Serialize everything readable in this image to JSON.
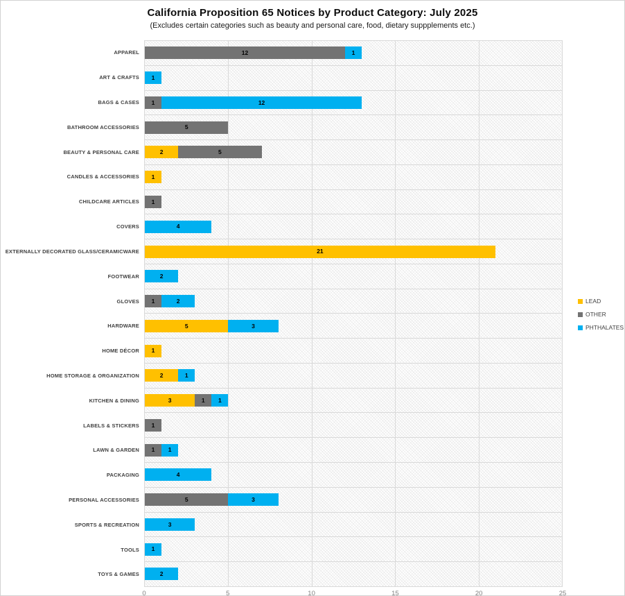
{
  "chart_data": {
    "type": "bar",
    "orientation": "horizontal",
    "stacked": true,
    "title": "California Proposition 65 Notices by Product Category: July 2025",
    "subtitle": "(Excludes certain categories such as beauty and personal care, food, dietary suppplements etc.)",
    "categories": [
      "APPAREL",
      "ART & CRAFTS",
      "BAGS & CASES",
      "BATHROOM ACCESSORIES",
      "BEAUTY & PERSONAL CARE",
      "CANDLES & ACCESSORIES",
      "CHILDCARE ARTICLES",
      "COVERS",
      "EXTERNALLY DECORATED GLASS/CERAMICWARE",
      "FOOTWEAR",
      "GLOVES",
      "HARDWARE",
      "HOME DÉCOR",
      "HOME STORAGE & ORGANIZATION",
      "KITCHEN & DINING",
      "LABELS & STICKERS",
      "LAWN & GARDEN",
      "PACKAGING",
      "PERSONAL ACCESSORIES",
      "SPORTS & RECREATION",
      "TOOLS",
      "TOYS & GAMES"
    ],
    "series": [
      {
        "name": "LEAD",
        "color": "#FFC000",
        "values": [
          0,
          0,
          0,
          0,
          2,
          1,
          0,
          0,
          21,
          0,
          0,
          5,
          1,
          2,
          3,
          0,
          0,
          0,
          0,
          0,
          0,
          0
        ]
      },
      {
        "name": "OTHER",
        "color": "#737373",
        "values": [
          12,
          0,
          1,
          5,
          5,
          0,
          1,
          0,
          0,
          0,
          1,
          0,
          0,
          0,
          1,
          1,
          1,
          0,
          5,
          0,
          0,
          0
        ]
      },
      {
        "name": "PHTHALATES",
        "color": "#00B0F0",
        "values": [
          1,
          1,
          12,
          0,
          0,
          0,
          0,
          4,
          0,
          2,
          2,
          3,
          0,
          1,
          1,
          0,
          1,
          4,
          3,
          3,
          1,
          2
        ]
      }
    ],
    "x_ticks": [
      0,
      5,
      10,
      15,
      20,
      25
    ],
    "xlim": [
      0,
      25
    ],
    "grid": true,
    "data_labels": true,
    "legend_position": "right",
    "plot_background_pattern": "light-gray-diagonal-hatch",
    "gridline_color": "#d9d9d9"
  }
}
